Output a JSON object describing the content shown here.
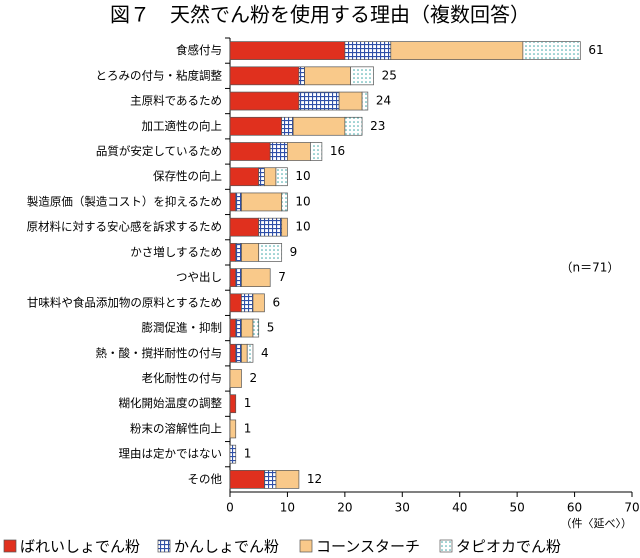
{
  "chart_data": {
    "type": "stacked_barh",
    "title": "図７　天然でん粉を使用する理由（複数回答）",
    "annotation": "（n＝71）",
    "x_label": "（件〈延べ〉）",
    "categories": [
      "食感付与",
      "とろみの付与・粘度調整",
      "主原料であるため",
      "加工適性の向上",
      "品質が安定しているため",
      "保存性の向上",
      "製造原価（製造コスト）を抑えるため",
      "原材料に対する安心感を訴求するため",
      "かさ増しするため",
      "つや出し",
      "甘味料や食品添加物の原料とするため",
      "膨潤促進・抑制",
      "熱・酸・撹拌耐性の付与",
      "老化耐性の付与",
      "糊化開始温度の調整",
      "粉末の溶解性向上",
      "理由は定かではない",
      "その他"
    ],
    "series": [
      {
        "name": "ばれいしょでん粉",
        "color": "#e0301e",
        "fill": "solid",
        "values": [
          20,
          12,
          12,
          9,
          7,
          5,
          1,
          5,
          1,
          1,
          2,
          1,
          1,
          0,
          1,
          0,
          0,
          6
        ]
      },
      {
        "name": "かんしょでん粉",
        "color": "#2f4fa8",
        "fill": "grid",
        "values": [
          8,
          1,
          7,
          2,
          3,
          1,
          1,
          4,
          1,
          1,
          2,
          1,
          1,
          0,
          0,
          0,
          1,
          2
        ]
      },
      {
        "name": "コーンスターチ",
        "color": "#f9c98a",
        "fill": "solid",
        "values": [
          23,
          8,
          4,
          9,
          4,
          2,
          7,
          1,
          3,
          5,
          2,
          2,
          1,
          2,
          0,
          1,
          0,
          4
        ]
      },
      {
        "name": "タピオカでん粉",
        "color": "#3aa6a6",
        "fill": "dots",
        "values": [
          10,
          4,
          1,
          3,
          2,
          2,
          1,
          0,
          4,
          0,
          0,
          1,
          1,
          0,
          0,
          0,
          0,
          0
        ]
      }
    ],
    "totals": [
      61,
      25,
      24,
      23,
      16,
      10,
      10,
      10,
      9,
      7,
      6,
      5,
      4,
      2,
      1,
      1,
      1,
      12
    ],
    "xlim": [
      0,
      70
    ],
    "xticks": [
      0,
      10,
      20,
      30,
      40,
      50,
      60,
      70
    ],
    "legend": "bottom"
  }
}
